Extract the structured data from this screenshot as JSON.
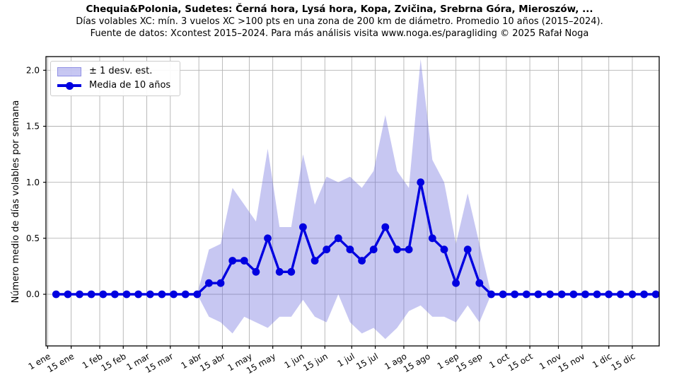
{
  "header": {
    "title": "Chequia&Polonia, Sudetes: Černá hora, Lysá hora, Kopa, Zvičina, Srebrna Góra, Mieroszów, ...",
    "subtitle": "Días volables XC: mín. 3 vuelos XC >100 pts en una zona de 200 km de diámetro. Promedio 10 años (2015–2024).",
    "source": "Fuente de datos: Xcontest 2015–2024. Para más análisis visita www.noga.es/paragliding © 2025 Rafał Noga"
  },
  "legend": {
    "band_label": "± 1 desv. est.",
    "line_label": "Media de 10 años"
  },
  "colors": {
    "line": "#0000e0",
    "band": "#6b6bdc",
    "band_opacity": 0.38,
    "grid": "#b3b3b3",
    "axis": "#000000"
  },
  "chart_data": {
    "type": "line",
    "title": "Chequia&Polonia, Sudetes: Černá hora, Lysá hora, Kopa, Zvičina, Srebrna Góra, Mieroszów, ...",
    "xlabel": "",
    "ylabel": "Número medio de días volables por semana",
    "grid": true,
    "legend_position": "upper left",
    "x_unit": "day_of_year",
    "xlim": [
      0,
      365
    ],
    "ylim": [
      -0.461,
      2.122
    ],
    "y_ticks": [
      {
        "v": 0.0,
        "label": "0.0"
      },
      {
        "v": 0.5,
        "label": "0.5"
      },
      {
        "v": 1.0,
        "label": "1.0"
      },
      {
        "v": 1.5,
        "label": "1.5"
      },
      {
        "v": 2.0,
        "label": "2.0"
      }
    ],
    "x_ticks": [
      {
        "day": 1,
        "label": "1 ene"
      },
      {
        "day": 15,
        "label": "15 ene"
      },
      {
        "day": 32,
        "label": "1 feb"
      },
      {
        "day": 46,
        "label": "15 feb"
      },
      {
        "day": 60,
        "label": "1 mar"
      },
      {
        "day": 74,
        "label": "15 mar"
      },
      {
        "day": 91,
        "label": "1 abr"
      },
      {
        "day": 105,
        "label": "15 abr"
      },
      {
        "day": 121,
        "label": "1 may"
      },
      {
        "day": 135,
        "label": "15 may"
      },
      {
        "day": 152,
        "label": "1 jun"
      },
      {
        "day": 166,
        "label": "15 jun"
      },
      {
        "day": 182,
        "label": "1 jul"
      },
      {
        "day": 196,
        "label": "15 jul"
      },
      {
        "day": 213,
        "label": "1 ago"
      },
      {
        "day": 227,
        "label": "15 ago"
      },
      {
        "day": 244,
        "label": "1 sep"
      },
      {
        "day": 258,
        "label": "15 sep"
      },
      {
        "day": 274,
        "label": "1 oct"
      },
      {
        "day": 288,
        "label": "15 oct"
      },
      {
        "day": 305,
        "label": "1 nov"
      },
      {
        "day": 319,
        "label": "15 nov"
      },
      {
        "day": 335,
        "label": "1 dic"
      },
      {
        "day": 349,
        "label": "15 dic"
      }
    ],
    "x_days": [
      6,
      13,
      20,
      27,
      34,
      41,
      48,
      55,
      62,
      69,
      76,
      83,
      90,
      97,
      104,
      111,
      118,
      125,
      132,
      139,
      146,
      153,
      160,
      167,
      174,
      181,
      188,
      195,
      202,
      209,
      216,
      223,
      230,
      237,
      244,
      251,
      258,
      265,
      272,
      279,
      286,
      293,
      300,
      307,
      314,
      321,
      328,
      335,
      342,
      349,
      356,
      363
    ],
    "series": [
      {
        "name": "Media de 10 años",
        "type": "line_markers",
        "values": [
          0,
          0,
          0,
          0,
          0,
          0,
          0,
          0,
          0,
          0,
          0,
          0,
          0,
          0.1,
          0.1,
          0.3,
          0.3,
          0.2,
          0.5,
          0.2,
          0.2,
          0.6,
          0.3,
          0.4,
          0.5,
          0.4,
          0.3,
          0.4,
          0.6,
          0.4,
          0.4,
          1.0,
          0.5,
          0.4,
          0.1,
          0.4,
          0.1,
          0,
          0,
          0,
          0,
          0,
          0,
          0,
          0,
          0,
          0,
          0,
          0,
          0,
          0,
          0
        ]
      },
      {
        "name": "± 1 desv. est.",
        "type": "band_std",
        "std": [
          0,
          0,
          0,
          0,
          0,
          0,
          0,
          0,
          0,
          0,
          0,
          0,
          0,
          0.3,
          0.35,
          0.65,
          0.5,
          0.45,
          0.8,
          0.4,
          0.4,
          0.65,
          0.5,
          0.65,
          0.5,
          0.65,
          0.65,
          0.7,
          1.0,
          0.7,
          0.55,
          1.1,
          0.7,
          0.6,
          0.35,
          0.5,
          0.35,
          0,
          0,
          0,
          0,
          0,
          0,
          0,
          0,
          0,
          0,
          0,
          0,
          0,
          0,
          0
        ]
      }
    ]
  }
}
